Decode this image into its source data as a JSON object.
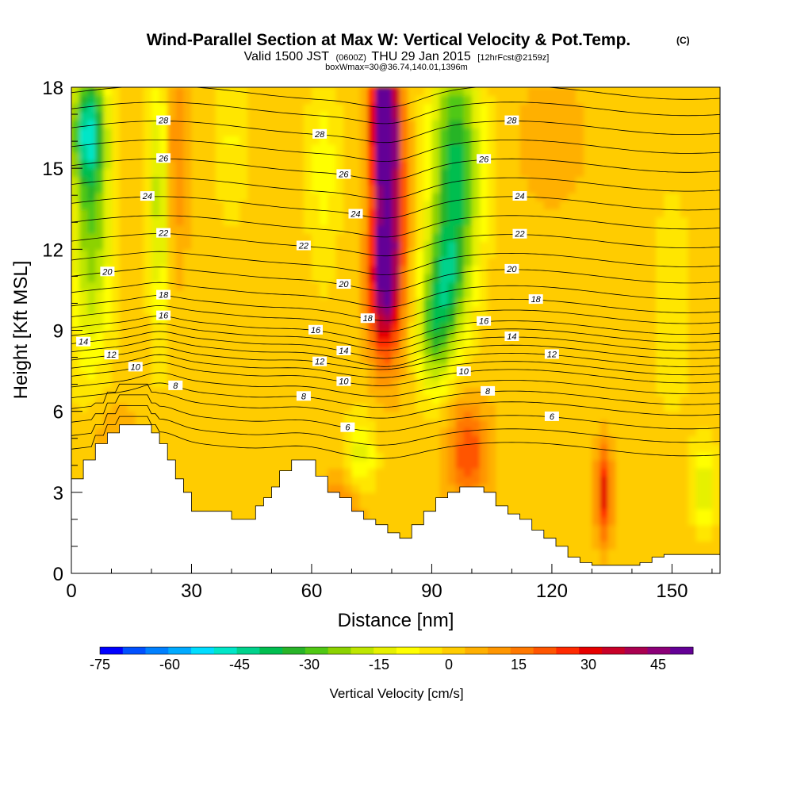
{
  "chart_data": {
    "type": "heatmap",
    "title": "Wind-Parallel Section at Max W: Vertical Velocity & Pot.Temp.",
    "title_units_tag": "(C)",
    "subtitle_main": "Valid 1500 JST",
    "subtitle_utc": "(0600Z)",
    "subtitle_date": "THU 29 Jan 2015",
    "subtitle_fcst": "[12hrFcst@2159z]",
    "subtitle2": "boxWmax=30@36.74,140.01,1396m",
    "xlabel": "Distance [nm]",
    "ylabel": "Height [Kft MSL]",
    "xlim": [
      0,
      162
    ],
    "ylim": [
      0,
      18
    ],
    "x_ticks": [
      "0",
      "30",
      "60",
      "90",
      "120",
      "150"
    ],
    "y_ticks": [
      "0",
      "3",
      "6",
      "9",
      "12",
      "15",
      "18"
    ],
    "colorbar": {
      "label": "Vertical Velocity [cm/s]",
      "tick_labels": [
        "-75",
        "-60",
        "-45",
        "-30",
        "-15",
        "0",
        "15",
        "30",
        "45"
      ],
      "range": [
        -75,
        52.5
      ],
      "step": 5,
      "colors": [
        "#0000ff",
        "#0050ff",
        "#0080ff",
        "#00aaff",
        "#00ddff",
        "#00e6c8",
        "#00d28c",
        "#00be50",
        "#28b428",
        "#50c814",
        "#8cd200",
        "#bee600",
        "#e6f000",
        "#ffff00",
        "#ffe600",
        "#ffcc00",
        "#ffb000",
        "#ff9600",
        "#ff7800",
        "#ff5500",
        "#ff2a00",
        "#e60000",
        "#c80028",
        "#aa0050",
        "#8c0078",
        "#640096"
      ]
    },
    "w_blobs": [
      {
        "x": 5,
        "z": 13.5,
        "rx": 5,
        "rz": 5.5,
        "w": -28
      },
      {
        "x": 4,
        "z": 16.5,
        "rx": 4,
        "rz": 2,
        "w": -32
      },
      {
        "x": 22,
        "z": 14,
        "rx": 2.5,
        "rz": 5,
        "w": -22
      },
      {
        "x": 26,
        "z": 15.5,
        "rx": 3,
        "rz": 4,
        "w": 14
      },
      {
        "x": 40,
        "z": 16,
        "rx": 4,
        "rz": 3,
        "w": -8
      },
      {
        "x": 63,
        "z": 15,
        "rx": 4,
        "rz": 4,
        "w": -10
      },
      {
        "x": 79,
        "z": 14,
        "rx": 4,
        "rz": 4.5,
        "w": 48
      },
      {
        "x": 78,
        "z": 17,
        "rx": 3,
        "rz": 2,
        "w": 48
      },
      {
        "x": 78,
        "z": 10.5,
        "rx": 4,
        "rz": 2.5,
        "w": 30
      },
      {
        "x": 96,
        "z": 15,
        "rx": 6,
        "rz": 4.5,
        "w": -40
      },
      {
        "x": 93,
        "z": 10.5,
        "rx": 5,
        "rz": 2.5,
        "w": -30
      },
      {
        "x": 90,
        "z": 8.5,
        "rx": 4,
        "rz": 2,
        "w": -18
      },
      {
        "x": 120,
        "z": 16,
        "rx": 10,
        "rz": 3,
        "w": 5
      },
      {
        "x": 99,
        "z": 4.5,
        "rx": 5,
        "rz": 2,
        "w": 22
      },
      {
        "x": 133,
        "z": 3,
        "rx": 2,
        "rz": 1.8,
        "w": 30
      },
      {
        "x": 158,
        "z": 3.2,
        "rx": 3,
        "rz": 1.5,
        "w": -18
      },
      {
        "x": 72,
        "z": 4.3,
        "rx": 4,
        "rz": 1.5,
        "w": -15
      },
      {
        "x": 68,
        "z": 2.5,
        "rx": 5,
        "rz": 1.3,
        "w": 15
      },
      {
        "x": 150,
        "z": 10,
        "rx": 6,
        "rz": 5,
        "w": -5
      },
      {
        "x": 10,
        "z": 5,
        "rx": 6,
        "rz": 1.5,
        "w": 8
      }
    ],
    "terrain": {
      "x": [
        0,
        3,
        6,
        9,
        12,
        15,
        18,
        20,
        22,
        24,
        26,
        28,
        30,
        33,
        36,
        40,
        44,
        46,
        48,
        50,
        52,
        55,
        58,
        61,
        64,
        67,
        70,
        73,
        76,
        79,
        82,
        85,
        88,
        91,
        94,
        97,
        100,
        103,
        106,
        109,
        112,
        115,
        118,
        121,
        124,
        127,
        130,
        133,
        136,
        139,
        142,
        145,
        148,
        151,
        154,
        157,
        160,
        162
      ],
      "z": [
        3.5,
        4.2,
        4.8,
        5.2,
        5.5,
        5.5,
        5.5,
        5.2,
        4.8,
        4.2,
        3.5,
        3.0,
        2.3,
        2.3,
        2.3,
        2.0,
        2.0,
        2.5,
        2.8,
        3.2,
        3.8,
        4.2,
        4.2,
        3.6,
        3.0,
        2.8,
        2.3,
        2.0,
        1.8,
        1.5,
        1.3,
        1.8,
        2.3,
        2.8,
        3.0,
        3.2,
        3.2,
        3.0,
        2.5,
        2.2,
        2.0,
        1.6,
        1.3,
        1.0,
        0.6,
        0.4,
        0.3,
        0.3,
        0.3,
        0.3,
        0.4,
        0.6,
        0.7,
        0.7,
        0.7,
        0.7,
        0.7,
        0.7
      ]
    },
    "theta_contours": [
      {
        "base": 4.6,
        "labels": []
      },
      {
        "base": 5.1,
        "labels": []
      },
      {
        "base": 5.6,
        "labels": [
          {
            "x": 120,
            "text": "6"
          },
          {
            "x": 69,
            "text": "6"
          }
        ]
      },
      {
        "base": 6.1,
        "labels": []
      },
      {
        "base": 6.5,
        "labels": [
          {
            "x": 26,
            "text": "8"
          },
          {
            "x": 58,
            "text": "8"
          },
          {
            "x": 104,
            "text": "8"
          }
        ]
      },
      {
        "base": 6.9,
        "labels": []
      },
      {
        "base": 7.3,
        "labels": [
          {
            "x": 16,
            "text": "10"
          },
          {
            "x": 68,
            "text": "10"
          },
          {
            "x": 98,
            "text": "10"
          }
        ]
      },
      {
        "base": 7.6,
        "labels": []
      },
      {
        "base": 7.9,
        "labels": [
          {
            "x": 10,
            "text": "12"
          },
          {
            "x": 62,
            "text": "12"
          },
          {
            "x": 120,
            "text": "12"
          }
        ]
      },
      {
        "base": 8.2,
        "labels": []
      },
      {
        "base": 8.5,
        "labels": [
          {
            "x": 3,
            "text": "14"
          },
          {
            "x": 68,
            "text": "14"
          },
          {
            "x": 110,
            "text": "14"
          }
        ]
      },
      {
        "base": 8.8,
        "labels": []
      },
      {
        "base": 9.1,
        "labels": [
          {
            "x": 23,
            "text": "16"
          },
          {
            "x": 61,
            "text": "16"
          },
          {
            "x": 103,
            "text": "16"
          }
        ]
      },
      {
        "base": 9.5,
        "labels": []
      },
      {
        "base": 9.9,
        "labels": [
          {
            "x": 23,
            "text": "18"
          },
          {
            "x": 74,
            "text": "18"
          },
          {
            "x": 116,
            "text": "18"
          }
        ]
      },
      {
        "base": 10.4,
        "labels": []
      },
      {
        "base": 11.0,
        "labels": [
          {
            "x": 9,
            "text": "20"
          },
          {
            "x": 68,
            "text": "20"
          },
          {
            "x": 110,
            "text": "20"
          }
        ]
      },
      {
        "base": 11.6,
        "labels": []
      },
      {
        "base": 12.3,
        "labels": [
          {
            "x": 23,
            "text": "22"
          },
          {
            "x": 58,
            "text": "22"
          },
          {
            "x": 112,
            "text": "22"
          }
        ]
      },
      {
        "base": 13.0,
        "labels": []
      },
      {
        "base": 13.7,
        "labels": [
          {
            "x": 19,
            "text": "24"
          },
          {
            "x": 71,
            "text": "24"
          },
          {
            "x": 112,
            "text": "24"
          }
        ]
      },
      {
        "base": 14.4,
        "labels": []
      },
      {
        "base": 15.1,
        "labels": [
          {
            "x": 23,
            "text": "26"
          },
          {
            "x": 68,
            "text": "26"
          },
          {
            "x": 103,
            "text": "26"
          }
        ]
      },
      {
        "base": 15.8,
        "labels": []
      },
      {
        "base": 16.5,
        "labels": [
          {
            "x": 23,
            "text": "28"
          },
          {
            "x": 62,
            "text": "28"
          },
          {
            "x": 110,
            "text": "28"
          }
        ]
      },
      {
        "base": 17.2,
        "labels": []
      },
      {
        "base": 17.8,
        "labels": []
      }
    ]
  }
}
